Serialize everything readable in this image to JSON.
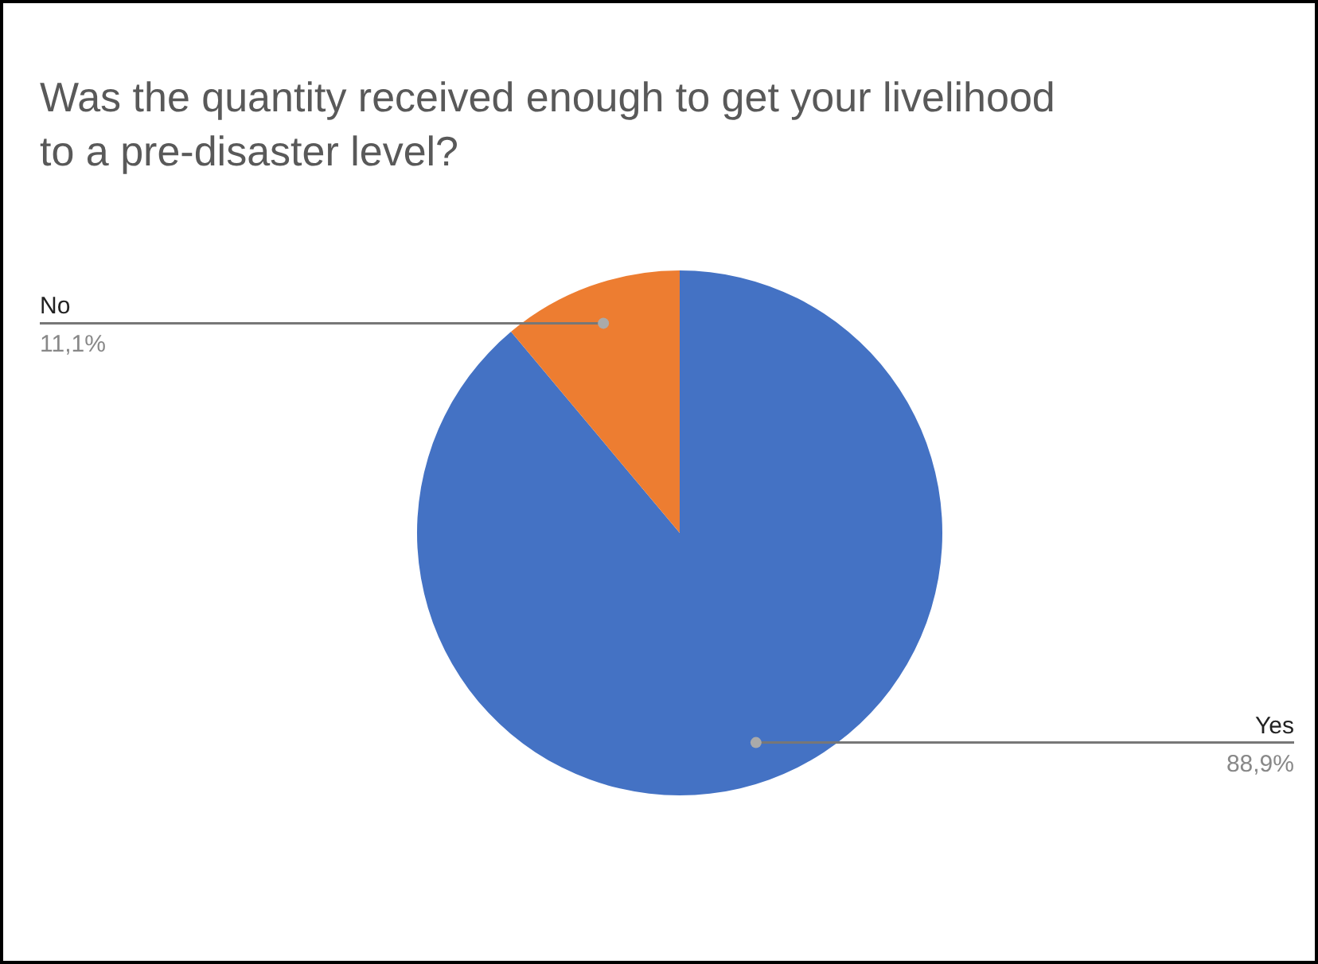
{
  "chart_data": {
    "type": "pie",
    "title": "Was the quantity received enough to get your livelihood to a pre-disaster level?",
    "categories": [
      "Yes",
      "No"
    ],
    "values": [
      88.9,
      11.1
    ],
    "value_labels": [
      "88,9%",
      "11,1%"
    ],
    "colors": [
      "#4472c4",
      "#ed7d31"
    ]
  }
}
